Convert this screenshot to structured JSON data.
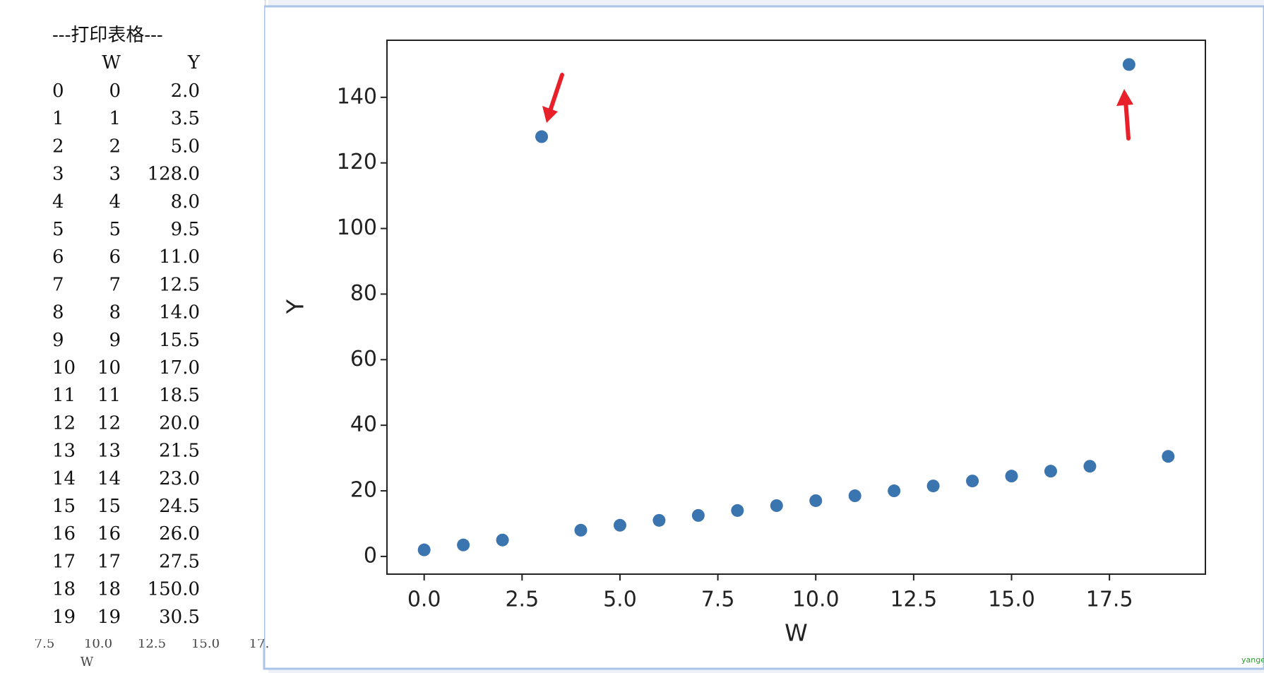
{
  "console": {
    "title": "---打印表格---",
    "header": [
      "W",
      "Y"
    ],
    "rows": [
      [
        "0",
        "0",
        "2.0"
      ],
      [
        "1",
        "1",
        "3.5"
      ],
      [
        "2",
        "2",
        "5.0"
      ],
      [
        "3",
        "3",
        "128.0"
      ],
      [
        "4",
        "4",
        "8.0"
      ],
      [
        "5",
        "5",
        "9.5"
      ],
      [
        "6",
        "6",
        "11.0"
      ],
      [
        "7",
        "7",
        "12.5"
      ],
      [
        "8",
        "8",
        "14.0"
      ],
      [
        "9",
        "9",
        "15.5"
      ],
      [
        "10",
        "10",
        "17.0"
      ],
      [
        "11",
        "11",
        "18.5"
      ],
      [
        "12",
        "12",
        "20.0"
      ],
      [
        "13",
        "13",
        "21.5"
      ],
      [
        "14",
        "14",
        "23.0"
      ],
      [
        "15",
        "15",
        "24.5"
      ],
      [
        "16",
        "16",
        "26.0"
      ],
      [
        "17",
        "17",
        "27.5"
      ],
      [
        "18",
        "18",
        "150.0"
      ],
      [
        "19",
        "19",
        "30.5"
      ]
    ]
  },
  "background_axis": {
    "ticks": [
      "7.5",
      "10.0",
      "12.5",
      "15.0",
      "17."
    ],
    "label": "W"
  },
  "watermark": "yangeit",
  "chart_data": {
    "type": "scatter",
    "x_label": "W",
    "y_label": "Y",
    "color": "#3b75af",
    "x": [
      0,
      1,
      2,
      3,
      4,
      5,
      6,
      7,
      8,
      9,
      10,
      11,
      12,
      13,
      14,
      15,
      16,
      17,
      18,
      19
    ],
    "values": [
      2.0,
      3.5,
      5.0,
      128.0,
      8.0,
      9.5,
      11.0,
      12.5,
      14.0,
      15.5,
      17.0,
      18.5,
      20.0,
      21.5,
      23.0,
      24.5,
      26.0,
      27.5,
      150.0,
      30.5
    ],
    "xlim": [
      -0.95,
      19.95
    ],
    "xticks": [
      {
        "value": 0,
        "label": "0.0"
      },
      {
        "value": 2.5,
        "label": "2.5"
      },
      {
        "value": 5,
        "label": "5.0"
      },
      {
        "value": 7.5,
        "label": "7.5"
      },
      {
        "value": 10,
        "label": "10.0"
      },
      {
        "value": 12.5,
        "label": "12.5"
      },
      {
        "value": 15,
        "label": "15.0"
      },
      {
        "value": 17.5,
        "label": "17.5"
      }
    ],
    "ylim": [
      -5.4,
      157.4
    ],
    "yticks": [
      0,
      20,
      40,
      60,
      80,
      100,
      120,
      140
    ]
  }
}
